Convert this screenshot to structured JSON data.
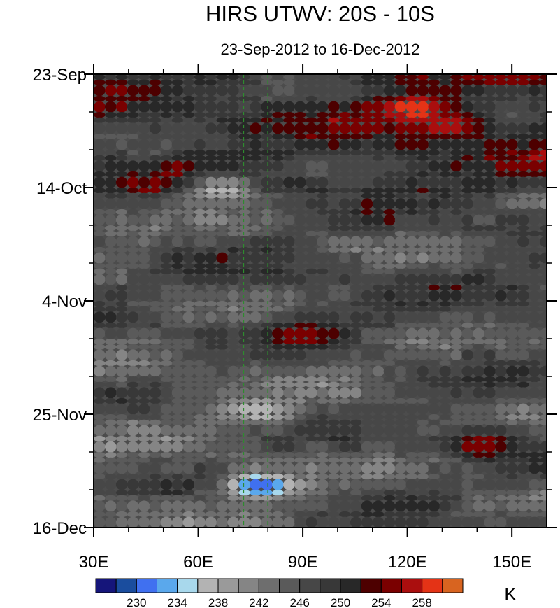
{
  "chart_data": {
    "type": "heatmap",
    "title": "HIRS UTWV: 20S - 10S",
    "subtitle": "23-Sep-2012 to 16-Dec-2012",
    "x_axis": {
      "range": [
        30,
        160
      ],
      "ticks": [
        30,
        60,
        90,
        120,
        150
      ],
      "tick_labels": [
        "30E",
        "60E",
        "90E",
        "120E",
        "150E"
      ]
    },
    "y_axis": {
      "range": [
        "2012-09-23",
        "2012-12-16"
      ],
      "direction": "top-to-bottom",
      "ticks": [
        "2012-09-23",
        "2012-10-14",
        "2012-11-04",
        "2012-11-25",
        "2012-12-16"
      ],
      "tick_labels": [
        "23-Sep",
        "14-Oct",
        "4-Nov",
        "25-Nov",
        "16-Dec"
      ]
    },
    "reference_lines_x": [
      73,
      80
    ],
    "reference_line_color": "#2e8b2e",
    "colorbar": {
      "unit": "K",
      "levels": [
        228,
        230,
        232,
        234,
        236,
        238,
        240,
        242,
        244,
        246,
        248,
        250,
        252,
        254,
        256,
        258,
        260
      ],
      "labels": [
        "230",
        "234",
        "238",
        "242",
        "246",
        "250",
        "254",
        "258"
      ],
      "colors": [
        "#15157a",
        "#1a4d9e",
        "#4070f0",
        "#5aa8ec",
        "#a8d8ec",
        "#b3b3b3",
        "#9a9a9a",
        "#858585",
        "#6e6e6e",
        "#5a5a5a",
        "#474747",
        "#383838",
        "#282828",
        "#4d0000",
        "#7a0000",
        "#aa0e0e",
        "#e43316",
        "#d86420"
      ]
    },
    "features": [
      {
        "lon": 120,
        "date": "2012-09-29",
        "value": 260
      },
      {
        "lon": 130,
        "date": "2012-10-02",
        "value": 258
      },
      {
        "lon": 65,
        "date": "2012-10-14",
        "value": 236
      },
      {
        "lon": 88,
        "date": "2012-11-10",
        "value": 256
      },
      {
        "lon": 76,
        "date": "2012-11-24",
        "value": 236
      },
      {
        "lon": 76,
        "date": "2012-12-08",
        "value": 230
      },
      {
        "lon": 140,
        "date": "2012-11-30",
        "value": 256
      }
    ]
  }
}
